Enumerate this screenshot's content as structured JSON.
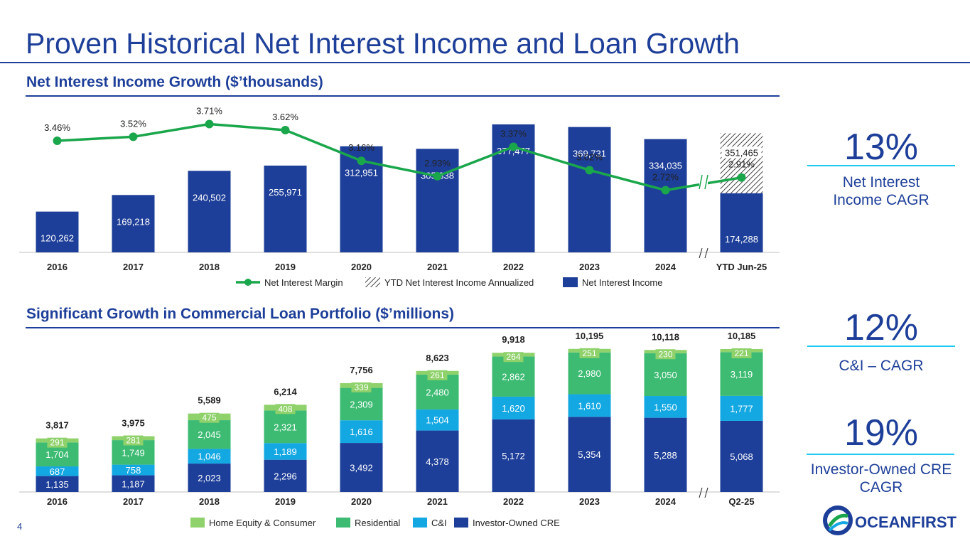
{
  "title": "Proven Historical Net Interest Income and Loan Growth",
  "page_number": "4",
  "section1": {
    "subtitle": "Net Interest Income Growth ($’thousands)"
  },
  "section2": {
    "subtitle": "Significant Growth in Commercial Loan Portfolio ($’millions)"
  },
  "kpis": [
    {
      "value": "13%",
      "label": "Net Interest Income CAGR"
    },
    {
      "value": "12%",
      "label": "C&I – CAGR"
    },
    {
      "value": "19%",
      "label": "Investor-Owned CRE CAGR"
    }
  ],
  "logo": {
    "text": "OCEANFIRST"
  },
  "colors": {
    "navy": "#1e3f99",
    "green": "#1aa64b",
    "residential": "#3dbb72",
    "home_equity": "#8fd16a",
    "ci": "#14a8e3"
  },
  "chart_data": [
    {
      "type": "bar",
      "title": "Net Interest Income Growth ($’thousands)",
      "categories": [
        "2016",
        "2017",
        "2018",
        "2019",
        "2020",
        "2021",
        "2022",
        "2023",
        "2024",
        "YTD Jun-25"
      ],
      "series": [
        {
          "name": "Net Interest Income",
          "values": [
            120262,
            169218,
            240502,
            255971,
            312951,
            305338,
            377477,
            369731,
            334035,
            174288
          ],
          "labels": [
            "120,262",
            "169,218",
            "240,502",
            "255,971",
            "312,951",
            "305,338",
            "377,477",
            "369,731",
            "334,035",
            "174,288"
          ]
        },
        {
          "name": "YTD Net Interest Income Annualized",
          "values": [
            null,
            null,
            null,
            null,
            null,
            null,
            null,
            null,
            null,
            351465
          ],
          "labels": [
            "",
            "",
            "",
            "",
            "",
            "",
            "",
            "",
            "",
            "351,465"
          ]
        },
        {
          "name": "Net Interest Margin",
          "type": "line",
          "values": [
            3.46,
            3.52,
            3.71,
            3.62,
            3.16,
            2.93,
            3.37,
            3.02,
            2.72,
            2.91
          ],
          "labels": [
            "3.46%",
            "3.52%",
            "3.71%",
            "3.62%",
            "3.16%",
            "2.93%",
            "3.37%",
            "3.02%",
            "2.72%",
            "2.91%"
          ]
        }
      ],
      "legend": [
        "Net Interest Margin",
        "YTD Net Interest Income Annualized",
        "Net Interest Income"
      ],
      "ylim": [
        0,
        500000
      ]
    },
    {
      "type": "bar",
      "stacked": true,
      "title": "Significant Growth in Commercial Loan Portfolio ($’millions)",
      "categories": [
        "2016",
        "2017",
        "2018",
        "2019",
        "2020",
        "2021",
        "2022",
        "2023",
        "2024",
        "Q2-25"
      ],
      "series": [
        {
          "name": "Investor-Owned CRE",
          "values": [
            1135,
            1187,
            2023,
            2296,
            3492,
            4378,
            5172,
            5354,
            5288,
            5068
          ],
          "labels": [
            "1,135",
            "1,187",
            "2,023",
            "2,296",
            "3,492",
            "4,378",
            "5,172",
            "5,354",
            "5,288",
            "5,068"
          ]
        },
        {
          "name": "C&I",
          "values": [
            687,
            758,
            1046,
            1189,
            1616,
            1504,
            1620,
            1610,
            1550,
            1777
          ],
          "labels": [
            "687",
            "758",
            "1,046",
            "1,189",
            "1,616",
            "1,504",
            "1,620",
            "1,610",
            "1,550",
            "1,777"
          ]
        },
        {
          "name": "Residential",
          "values": [
            1704,
            1749,
            2045,
            2321,
            2309,
            2480,
            2862,
            2980,
            3050,
            3119
          ],
          "labels": [
            "1,704",
            "1,749",
            "2,045",
            "2,321",
            "2,309",
            "2,480",
            "2,862",
            "2,980",
            "3,050",
            "3,119"
          ]
        },
        {
          "name": "Home Equity & Consumer",
          "values": [
            291,
            281,
            475,
            408,
            339,
            261,
            264,
            251,
            230,
            221
          ],
          "labels": [
            "291",
            "281",
            "475",
            "408",
            "339",
            "261",
            "264",
            "251",
            "230",
            "221"
          ]
        }
      ],
      "totals": [
        3817,
        3975,
        5589,
        6214,
        7756,
        8623,
        9918,
        10195,
        10118,
        10185
      ],
      "total_labels": [
        "3,817",
        "3,975",
        "5,589",
        "6,214",
        "7,756",
        "8,623",
        "9,918",
        "10,195",
        "10,118",
        "10,185"
      ],
      "legend": [
        "Home Equity & Consumer",
        "Residential",
        "C&I",
        "Investor-Owned CRE"
      ],
      "ylim": [
        0,
        11000
      ]
    }
  ]
}
